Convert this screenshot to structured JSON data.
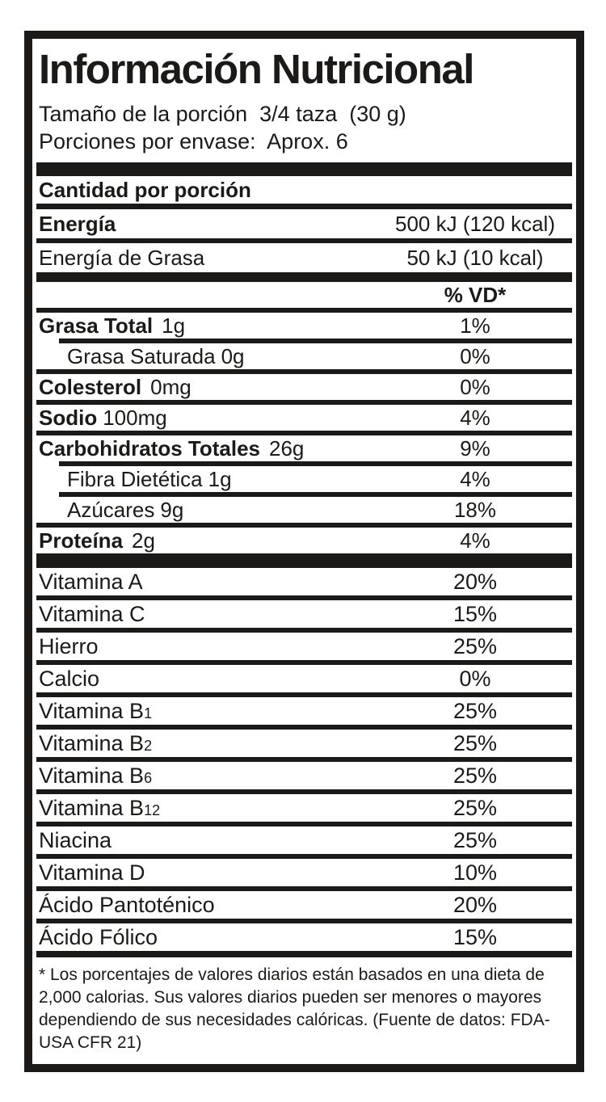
{
  "title": "Información Nutricional",
  "serving": {
    "size_line": "Tamaño de la porción  3/4 taza  (30 g)",
    "per_container_line": "Porciones por envase:  Aprox. 6"
  },
  "amount_header": "Cantidad por porción",
  "dv_header": "% VD*",
  "energy": [
    {
      "label": "Energía",
      "value": "500 kJ (120 kcal)"
    },
    {
      "label": "Energía de Grasa",
      "value": "50 kJ (10 kcal)"
    }
  ],
  "nutrients": [
    {
      "name": "Grasa Total",
      "amount": "1g",
      "dv": "1%"
    },
    {
      "name": "Grasa Saturada",
      "amount": "0g",
      "dv": "0%"
    },
    {
      "name": "Colesterol",
      "amount": "0mg",
      "dv": "0%"
    },
    {
      "name": "Sodio",
      "amount": "100mg",
      "dv": "4%"
    },
    {
      "name": "Carbohidratos Totales",
      "amount": "26g",
      "dv": "9%"
    },
    {
      "name": "Fibra Dietética",
      "amount": "1g",
      "dv": "4%"
    },
    {
      "name": "Azúcares",
      "amount": "9g",
      "dv": "18%"
    },
    {
      "name": "Proteína",
      "amount": "2g",
      "dv": "4%"
    }
  ],
  "vitamins": [
    {
      "name": "Vitamina A",
      "sub": "",
      "dv": "20%"
    },
    {
      "name": "Vitamina C",
      "sub": "",
      "dv": "15%"
    },
    {
      "name": "Hierro",
      "sub": "",
      "dv": "25%"
    },
    {
      "name": "Calcio",
      "sub": "",
      "dv": "0%"
    },
    {
      "name": "Vitamina B",
      "sub": "1",
      "dv": "25%"
    },
    {
      "name": "Vitamina B",
      "sub": "2",
      "dv": "25%"
    },
    {
      "name": "Vitamina B",
      "sub": "6",
      "dv": "25%"
    },
    {
      "name": "Vitamina B",
      "sub": "12",
      "dv": "25%"
    },
    {
      "name": "Niacina",
      "sub": "",
      "dv": "25%"
    },
    {
      "name": "Vitamina D",
      "sub": "",
      "dv": "10%"
    },
    {
      "name": "Ácido Pantoténico",
      "sub": "",
      "dv": "20%"
    },
    {
      "name": "Ácido Fólico",
      "sub": "",
      "dv": "15%"
    }
  ],
  "footnote": "* Los porcentajes de valores diarios están basados en una dieta de 2,000 calorias. Sus valores diarios pueden ser menores o mayores dependiendo de sus necesidades calóricas. (Fuente de datos: FDA-USA CFR 21)",
  "colors": {
    "ink": "#1b1a18",
    "background": "#ffffff"
  }
}
